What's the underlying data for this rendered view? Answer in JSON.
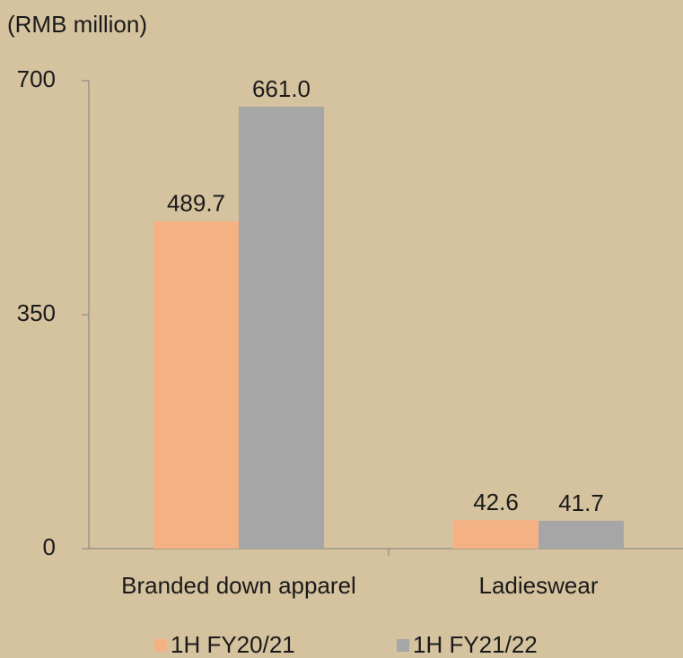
{
  "chart_data": {
    "type": "bar",
    "y_axis_label": "(RMB million)",
    "categories": [
      "Branded down apparel",
      "Ladieswear"
    ],
    "series": [
      {
        "name": "1H FY20/21",
        "color": "#f4b183",
        "values": [
          489.7,
          42.6
        ],
        "value_labels": [
          "489.7",
          "42.6"
        ]
      },
      {
        "name": "1H FY21/22",
        "color": "#a6a6a6",
        "values": [
          661,
          41.7
        ],
        "value_labels": [
          "661.0",
          "41.7"
        ]
      }
    ],
    "ylim": [
      0,
      700
    ],
    "yticks": [
      0,
      350,
      700
    ],
    "grid": false,
    "legend": "bottom"
  }
}
